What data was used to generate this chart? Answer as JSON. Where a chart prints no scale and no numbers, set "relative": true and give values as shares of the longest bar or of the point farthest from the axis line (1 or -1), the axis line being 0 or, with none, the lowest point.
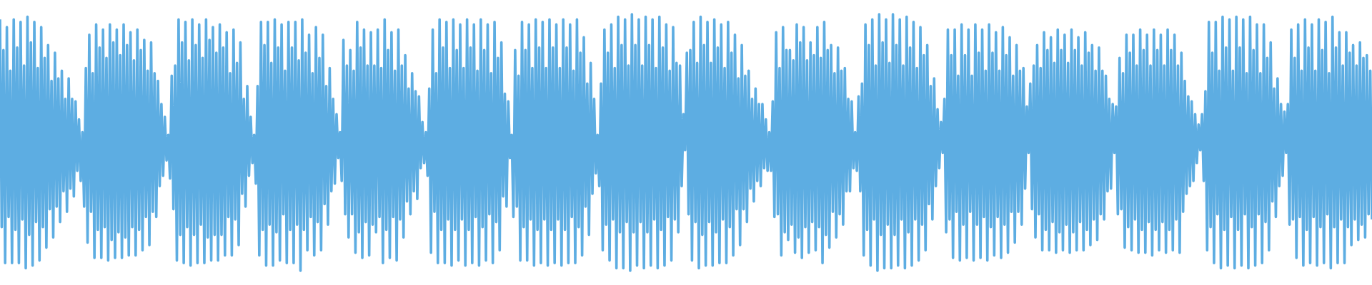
{
  "chart_data": {
    "type": "line",
    "relative": true,
    "categories": [
      null,
      null,
      null,
      null,
      null,
      null,
      null,
      null,
      null,
      null,
      null,
      null,
      null,
      null,
      null,
      null,
      null,
      null,
      null,
      null,
      null,
      null,
      null,
      null,
      null,
      null,
      null,
      null,
      null,
      null,
      null,
      null,
      null,
      null,
      null,
      null,
      null,
      null,
      null,
      null,
      null,
      null,
      null,
      null,
      null,
      null,
      null,
      null,
      null,
      null,
      null,
      null,
      null,
      null,
      null,
      null,
      null,
      null,
      null,
      null,
      null,
      null,
      null,
      null,
      null,
      null,
      null,
      null,
      null,
      null,
      null,
      null,
      null,
      null,
      null,
      null,
      null,
      null,
      null,
      null,
      null,
      null,
      null,
      null,
      null,
      null,
      null,
      null,
      null,
      null,
      null,
      null,
      null,
      null,
      null,
      null,
      null,
      null,
      null,
      null,
      null,
      null,
      null,
      null,
      null,
      null,
      null,
      null,
      null,
      null,
      null,
      null,
      null,
      null,
      null,
      null,
      null,
      null,
      null,
      null,
      null,
      null,
      null,
      null,
      null,
      null,
      null,
      null,
      null,
      null,
      null,
      null,
      null,
      null,
      null,
      null,
      null,
      null,
      null,
      null,
      null,
      null,
      null,
      null,
      null,
      null,
      null,
      null,
      null,
      null,
      null,
      null,
      null,
      null,
      null,
      null,
      null,
      null,
      null,
      null,
      null,
      null,
      null,
      null,
      null,
      null,
      null,
      null,
      null,
      null,
      null,
      null,
      null,
      null,
      null,
      null,
      null,
      null,
      null,
      null,
      null,
      null,
      null,
      null,
      null,
      null,
      null,
      null,
      null,
      null,
      null,
      null,
      null,
      null,
      null,
      null,
      null,
      null,
      null,
      null,
      null,
      null,
      null,
      null,
      null,
      null,
      null,
      null,
      null,
      null,
      null,
      null,
      null,
      null,
      null,
      null,
      null,
      null,
      null,
      null,
      null,
      null,
      null,
      null,
      null,
      null,
      null,
      null,
      null,
      null,
      null,
      null,
      null,
      null,
      null,
      null,
      null,
      null,
      null,
      null,
      null,
      null,
      null,
      null,
      null,
      null,
      null,
      null,
      null,
      null,
      null,
      null,
      null,
      null,
      null,
      null,
      null,
      null,
      null,
      null,
      null,
      null,
      null,
      null,
      null,
      null,
      null,
      null,
      null,
      null,
      null,
      null,
      null,
      null,
      null,
      null,
      null,
      null,
      null,
      null,
      null,
      null,
      null,
      null,
      null,
      null,
      null,
      null,
      null,
      null,
      null,
      null,
      null,
      null,
      null,
      null,
      null,
      null,
      null,
      null,
      null,
      null,
      null,
      null,
      null,
      null,
      null,
      null,
      null,
      null,
      null,
      null,
      null,
      null,
      null,
      null,
      null,
      null,
      null,
      null,
      null,
      null,
      null,
      null,
      null,
      null,
      null,
      null,
      null,
      null,
      null,
      null,
      null,
      null,
      null,
      null,
      null,
      null,
      null,
      null,
      null,
      null,
      null,
      null,
      null,
      null,
      null,
      null,
      null,
      null,
      null,
      null,
      null,
      null,
      null,
      null,
      null,
      null,
      null,
      null,
      null,
      null,
      null,
      null,
      null,
      null,
      null,
      null,
      null,
      null,
      null,
      null,
      null,
      null,
      null,
      null,
      null,
      null,
      null,
      null,
      null,
      null,
      null,
      null,
      null,
      null,
      null,
      null,
      null,
      null,
      null,
      null,
      null,
      null,
      null,
      null,
      null,
      null,
      null,
      null,
      null,
      null,
      null,
      null,
      null,
      null,
      null,
      null,
      null,
      null,
      null,
      null,
      null,
      null,
      null,
      null,
      null,
      null,
      null,
      null,
      null,
      null,
      null,
      null,
      null,
      null,
      null,
      null,
      null,
      null,
      null,
      null,
      null,
      null,
      null,
      null,
      null,
      null,
      null,
      null,
      null,
      null,
      null,
      null,
      null,
      null,
      null,
      null,
      null,
      null,
      null,
      null,
      null,
      null,
      null,
      null,
      null,
      null,
      null,
      null,
      null,
      null,
      null,
      null,
      null,
      null,
      null,
      null,
      null,
      null,
      null,
      null,
      null,
      null,
      null,
      null,
      null,
      null,
      null,
      null,
      null,
      null,
      null,
      null,
      null,
      null,
      null,
      null,
      null,
      null,
      null,
      null,
      null,
      null,
      null,
      null,
      null,
      null,
      null,
      null,
      null,
      null,
      null,
      null,
      null,
      null,
      null,
      null,
      null,
      null,
      null,
      null,
      null,
      null,
      null,
      null,
      null,
      null,
      null,
      null,
      null,
      null,
      null,
      null,
      null,
      null,
      null,
      null,
      null,
      null,
      null,
      null,
      null,
      null,
      null,
      null,
      null,
      null,
      null,
      null,
      null,
      null,
      null,
      null,
      null,
      null,
      null,
      null,
      null,
      null,
      null,
      null,
      null,
      null,
      null,
      null,
      null,
      null,
      null,
      null,
      null,
      null,
      null,
      null,
      null,
      null,
      null,
      null,
      null,
      null,
      null,
      null,
      null,
      null,
      null,
      null,
      null,
      null,
      null,
      null,
      null,
      null,
      null,
      null,
      null,
      null,
      null,
      null,
      null,
      null,
      null,
      null,
      null,
      null,
      null,
      null,
      null,
      null,
      null,
      null,
      null,
      null,
      null,
      null,
      null,
      null,
      null,
      null,
      null,
      null,
      null,
      null,
      null,
      null,
      null,
      null,
      null,
      null,
      null,
      null,
      null,
      null,
      null,
      null,
      null,
      null,
      null,
      null,
      null,
      null,
      null,
      null,
      null,
      null,
      null,
      null,
      null,
      null,
      null,
      null,
      null,
      null,
      null,
      null,
      null,
      null,
      null,
      null,
      null,
      null,
      null,
      null,
      null,
      null,
      null,
      null,
      null,
      null,
      null,
      null,
      null,
      null,
      null,
      null,
      null,
      null,
      null,
      null,
      null,
      null,
      null,
      null,
      null,
      null,
      null,
      null,
      null,
      null,
      null,
      null,
      null,
      null,
      null,
      null,
      null,
      null,
      null,
      null,
      null,
      null,
      null,
      null,
      null,
      null,
      null,
      null,
      null,
      null,
      null,
      null,
      null,
      null,
      null,
      null,
      null,
      null,
      null,
      null,
      null,
      null,
      null,
      null,
      null,
      null,
      null,
      null,
      null,
      null,
      null,
      null,
      null,
      null,
      null,
      null,
      null,
      null,
      null,
      null,
      null,
      null,
      null,
      null,
      null,
      null,
      null,
      null,
      null,
      null,
      null,
      null,
      null,
      null,
      null,
      null,
      null,
      null,
      null,
      null,
      null,
      null,
      null,
      null,
      null,
      null,
      null,
      null,
      null,
      null,
      null,
      null,
      null,
      null,
      null,
      null,
      null,
      null,
      null,
      null,
      null,
      null,
      null,
      null,
      null,
      null,
      null,
      null,
      null,
      null,
      null,
      null,
      null,
      null,
      null,
      null,
      null,
      null,
      null,
      null,
      null,
      null,
      null,
      null,
      null,
      null,
      null,
      null,
      null,
      null,
      null,
      null
    ],
    "series": [
      {
        "color": "#5dade2",
        "values": [
          0.98,
          0.17,
          0.86,
          0.03,
          0.95,
          0.21,
          0.78,
          0.03,
          0.98,
          0.16,
          0.87,
          0.03,
          0.97,
          0.2,
          0.8,
          0.01,
          0.99,
          0.14,
          0.89,
          0.02,
          0.97,
          0.19,
          0.79,
          0.04,
          0.95,
          0.17,
          0.83,
          0.09,
          0.88,
          0.24,
          0.74,
          0.13,
          0.85,
          0.25,
          0.75,
          0.19,
          0.78,
          0.31,
          0.67,
          0.23,
          0.75,
          0.32,
          0.67,
          0.29,
          0.66,
          0.39,
          0.59,
          0.35,
          0.54,
          0.25,
          0.79,
          0.11,
          0.92,
          0.23,
          0.77,
          0.05,
          0.96,
          0.16,
          0.87,
          0.05,
          0.94,
          0.17,
          0.83,
          0.04,
          0.96,
          0.12,
          0.89,
          0.05,
          0.94,
          0.15,
          0.84,
          0.05,
          0.96,
          0.13,
          0.88,
          0.06,
          0.93,
          0.17,
          0.82,
          0.06,
          0.94,
          0.16,
          0.86,
          0.08,
          0.9,
          0.21,
          0.78,
          0.1,
          0.89,
          0.23,
          0.77,
          0.21,
          0.74,
          0.33,
          0.65,
          0.37,
          0.6,
          0.43,
          0.53,
          0.36,
          0.76,
          0.24,
          0.8,
          0.04,
          0.98,
          0.14,
          0.89,
          0.03,
          0.97,
          0.17,
          0.82,
          0.02,
          0.98,
          0.14,
          0.88,
          0.03,
          0.96,
          0.18,
          0.83,
          0.03,
          0.98,
          0.13,
          0.9,
          0.04,
          0.95,
          0.14,
          0.85,
          0.04,
          0.96,
          0.14,
          0.87,
          0.06,
          0.93,
          0.21,
          0.77,
          0.06,
          0.94,
          0.2,
          0.81,
          0.1,
          0.89,
          0.3,
          0.67,
          0.25,
          0.72,
          0.37,
          0.6,
          0.42,
          0.53,
          0.34,
          0.72,
          0.06,
          0.97,
          0.16,
          0.88,
          0.02,
          0.97,
          0.18,
          0.81,
          0.02,
          0.98,
          0.15,
          0.87,
          0.04,
          0.96,
          0.22,
          0.78,
          0.03,
          0.97,
          0.16,
          0.87,
          0.03,
          0.97,
          0.18,
          0.82,
          0.0,
          0.98,
          0.16,
          0.85,
          0.08,
          0.92,
          0.21,
          0.77,
          0.06,
          0.95,
          0.19,
          0.83,
          0.08,
          0.92,
          0.26,
          0.72,
          0.18,
          0.79,
          0.31,
          0.67,
          0.34,
          0.61,
          0.44,
          0.54,
          0.35,
          0.9,
          0.22,
          0.8,
          0.13,
          0.86,
          0.22,
          0.78,
          0.07,
          0.97,
          0.15,
          0.87,
          0.05,
          0.94,
          0.19,
          0.8,
          0.06,
          0.93,
          0.18,
          0.8,
          0.15,
          0.94,
          0.21,
          0.79,
          0.03,
          0.98,
          0.16,
          0.86,
          0.05,
          0.93,
          0.21,
          0.78,
          0.04,
          0.94,
          0.2,
          0.8,
          0.13,
          0.84,
          0.27,
          0.71,
          0.22,
          0.77,
          0.31,
          0.7,
          0.28,
          0.68,
          0.4,
          0.58,
          0.42,
          0.54,
          0.37,
          0.71,
          0.07,
          0.94,
          0.23,
          0.77,
          0.03,
          0.98,
          0.16,
          0.87,
          0.03,
          0.97,
          0.2,
          0.79,
          0.02,
          0.98,
          0.16,
          0.86,
          0.04,
          0.96,
          0.2,
          0.79,
          0.02,
          0.98,
          0.16,
          0.87,
          0.03,
          0.96,
          0.21,
          0.78,
          0.02,
          0.98,
          0.17,
          0.86,
          0.04,
          0.96,
          0.22,
          0.77,
          0.03,
          0.97,
          0.19,
          0.83,
          0.08,
          0.89,
          0.29,
          0.69,
          0.25,
          0.66,
          0.44,
          0.53,
          0.21,
          0.86,
          0.25,
          0.76,
          0.04,
          0.97,
          0.17,
          0.86,
          0.04,
          0.96,
          0.2,
          0.79,
          0.02,
          0.98,
          0.16,
          0.87,
          0.03,
          0.97,
          0.2,
          0.79,
          0.02,
          0.98,
          0.16,
          0.87,
          0.03,
          0.96,
          0.2,
          0.79,
          0.02,
          0.98,
          0.16,
          0.87,
          0.03,
          0.96,
          0.21,
          0.78,
          0.03,
          0.98,
          0.17,
          0.85,
          0.06,
          0.91,
          0.25,
          0.73,
          0.14,
          0.81,
          0.3,
          0.67,
          0.38,
          0.53,
          0.33,
          0.73,
          0.08,
          0.94,
          0.18,
          0.85,
          0.04,
          0.96,
          0.2,
          0.79,
          0.01,
          0.99,
          0.15,
          0.88,
          0.01,
          0.98,
          0.19,
          0.8,
          0.0,
          1.0,
          0.15,
          0.88,
          0.02,
          0.98,
          0.19,
          0.8,
          0.01,
          0.99,
          0.15,
          0.88,
          0.02,
          0.98,
          0.2,
          0.79,
          0.01,
          0.99,
          0.16,
          0.87,
          0.02,
          0.96,
          0.21,
          0.78,
          0.04,
          0.95,
          0.2,
          0.81,
          0.15,
          0.8,
          0.33,
          0.61,
          0.47,
          0.85,
          0.22,
          0.86,
          0.04,
          0.97,
          0.19,
          0.81,
          0.01,
          0.99,
          0.14,
          0.88,
          0.02,
          0.97,
          0.19,
          0.81,
          0.02,
          0.98,
          0.15,
          0.87,
          0.03,
          0.96,
          0.2,
          0.79,
          0.03,
          0.97,
          0.17,
          0.85,
          0.06,
          0.92,
          0.24,
          0.75,
          0.1,
          0.88,
          0.24,
          0.76,
          0.19,
          0.78,
          0.32,
          0.67,
          0.27,
          0.71,
          0.35,
          0.65,
          0.33,
          0.65,
          0.4,
          0.59,
          0.39,
          0.54,
          0.39,
          0.66,
          0.21,
          0.93,
          0.22,
          0.79,
          0.06,
          0.95,
          0.15,
          0.86,
          0.12,
          0.86,
          0.18,
          0.82,
          0.07,
          0.96,
          0.13,
          0.89,
          0.05,
          0.95,
          0.17,
          0.82,
          0.07,
          0.89,
          0.19,
          0.84,
          0.08,
          0.95,
          0.17,
          0.83,
          0.03,
          0.97,
          0.14,
          0.86,
          0.09,
          0.88,
          0.23,
          0.77,
          0.13,
          0.87,
          0.22,
          0.78,
          0.18,
          0.79,
          0.31,
          0.67,
          0.31,
          0.66,
          0.4,
          0.54,
          0.39,
          0.68,
          0.31,
          0.73,
          0.06,
          0.96,
          0.16,
          0.88,
          0.02,
          0.98,
          0.2,
          0.8,
          0.0,
          1.0,
          0.14,
          0.89,
          0.01,
          0.98,
          0.18,
          0.81,
          0.01,
          1.0,
          0.14,
          0.88,
          0.02,
          0.98,
          0.2,
          0.8,
          0.01,
          0.99,
          0.15,
          0.87,
          0.02,
          0.97,
          0.2,
          0.79,
          0.04,
          0.95,
          0.18,
          0.84,
          0.08,
          0.88,
          0.26,
          0.72,
          0.2,
          0.75,
          0.33,
          0.63,
          0.4,
          0.58,
          0.46,
          0.67,
          0.15,
          0.94,
          0.2,
          0.84,
          0.05,
          0.94,
          0.23,
          0.76,
          0.04,
          0.96,
          0.18,
          0.84,
          0.05,
          0.94,
          0.23,
          0.76,
          0.04,
          0.96,
          0.18,
          0.85,
          0.05,
          0.94,
          0.21,
          0.78,
          0.04,
          0.96,
          0.17,
          0.85,
          0.06,
          0.93,
          0.21,
          0.78,
          0.05,
          0.95,
          0.18,
          0.84,
          0.07,
          0.91,
          0.23,
          0.76,
          0.11,
          0.88,
          0.23,
          0.78,
          0.18,
          0.79,
          0.32,
          0.64,
          0.46,
          0.73,
          0.24,
          0.8,
          0.13,
          0.88,
          0.22,
          0.79,
          0.08,
          0.93,
          0.16,
          0.86,
          0.08,
          0.91,
          0.19,
          0.81,
          0.07,
          0.94,
          0.15,
          0.86,
          0.08,
          0.92,
          0.18,
          0.81,
          0.07,
          0.94,
          0.15,
          0.86,
          0.08,
          0.91,
          0.19,
          0.8,
          0.08,
          0.93,
          0.16,
          0.85,
          0.1,
          0.88,
          0.2,
          0.78,
          0.12,
          0.87,
          0.22,
          0.78,
          0.2,
          0.76,
          0.31,
          0.67,
          0.32,
          0.65,
          0.46,
          0.64,
          0.22,
          0.83,
          0.24,
          0.77,
          0.09,
          0.92,
          0.17,
          0.85,
          0.08,
          0.92,
          0.2,
          0.8,
          0.07,
          0.94,
          0.16,
          0.86,
          0.07,
          0.92,
          0.19,
          0.8,
          0.06,
          0.94,
          0.16,
          0.86,
          0.08,
          0.92,
          0.19,
          0.8,
          0.07,
          0.94,
          0.16,
          0.86,
          0.08,
          0.92,
          0.2,
          0.8,
          0.07,
          0.85,
          0.23,
          0.74,
          0.3,
          0.68,
          0.33,
          0.66,
          0.35,
          0.61,
          0.42,
          0.57,
          0.47,
          0.61,
          0.35,
          0.7,
          0.08,
          0.97,
          0.17,
          0.85,
          0.03,
          0.97,
          0.22,
          0.78,
          0.01,
          0.99,
          0.16,
          0.87,
          0.02,
          0.98,
          0.21,
          0.78,
          0.01,
          0.99,
          0.16,
          0.87,
          0.02,
          0.98,
          0.22,
          0.77,
          0.01,
          0.99,
          0.17,
          0.86,
          0.02,
          0.96,
          0.22,
          0.77,
          0.03,
          0.96,
          0.19,
          0.83,
          0.08,
          0.89,
          0.27,
          0.71,
          0.21,
          0.75,
          0.33,
          0.65,
          0.37,
          0.62,
          0.46,
          0.65,
          0.18,
          0.94,
          0.2,
          0.83,
          0.05,
          0.96,
          0.21,
          0.78,
          0.02,
          0.98,
          0.16,
          0.87,
          0.03,
          0.96,
          0.21,
          0.78,
          0.02,
          0.98,
          0.17,
          0.86,
          0.03,
          0.97,
          0.22,
          0.77,
          0.01,
          0.99,
          0.17,
          0.87,
          0.03,
          0.93,
          0.2,
          0.8,
          0.03,
          0.93,
          0.17,
          0.85,
          0.1,
          0.88,
          0.2,
          0.8,
          0.12,
          0.89,
          0.18,
          0.83,
          0.13,
          0.84,
          0.22,
          0.78,
          0.2
        ]
      }
    ]
  }
}
